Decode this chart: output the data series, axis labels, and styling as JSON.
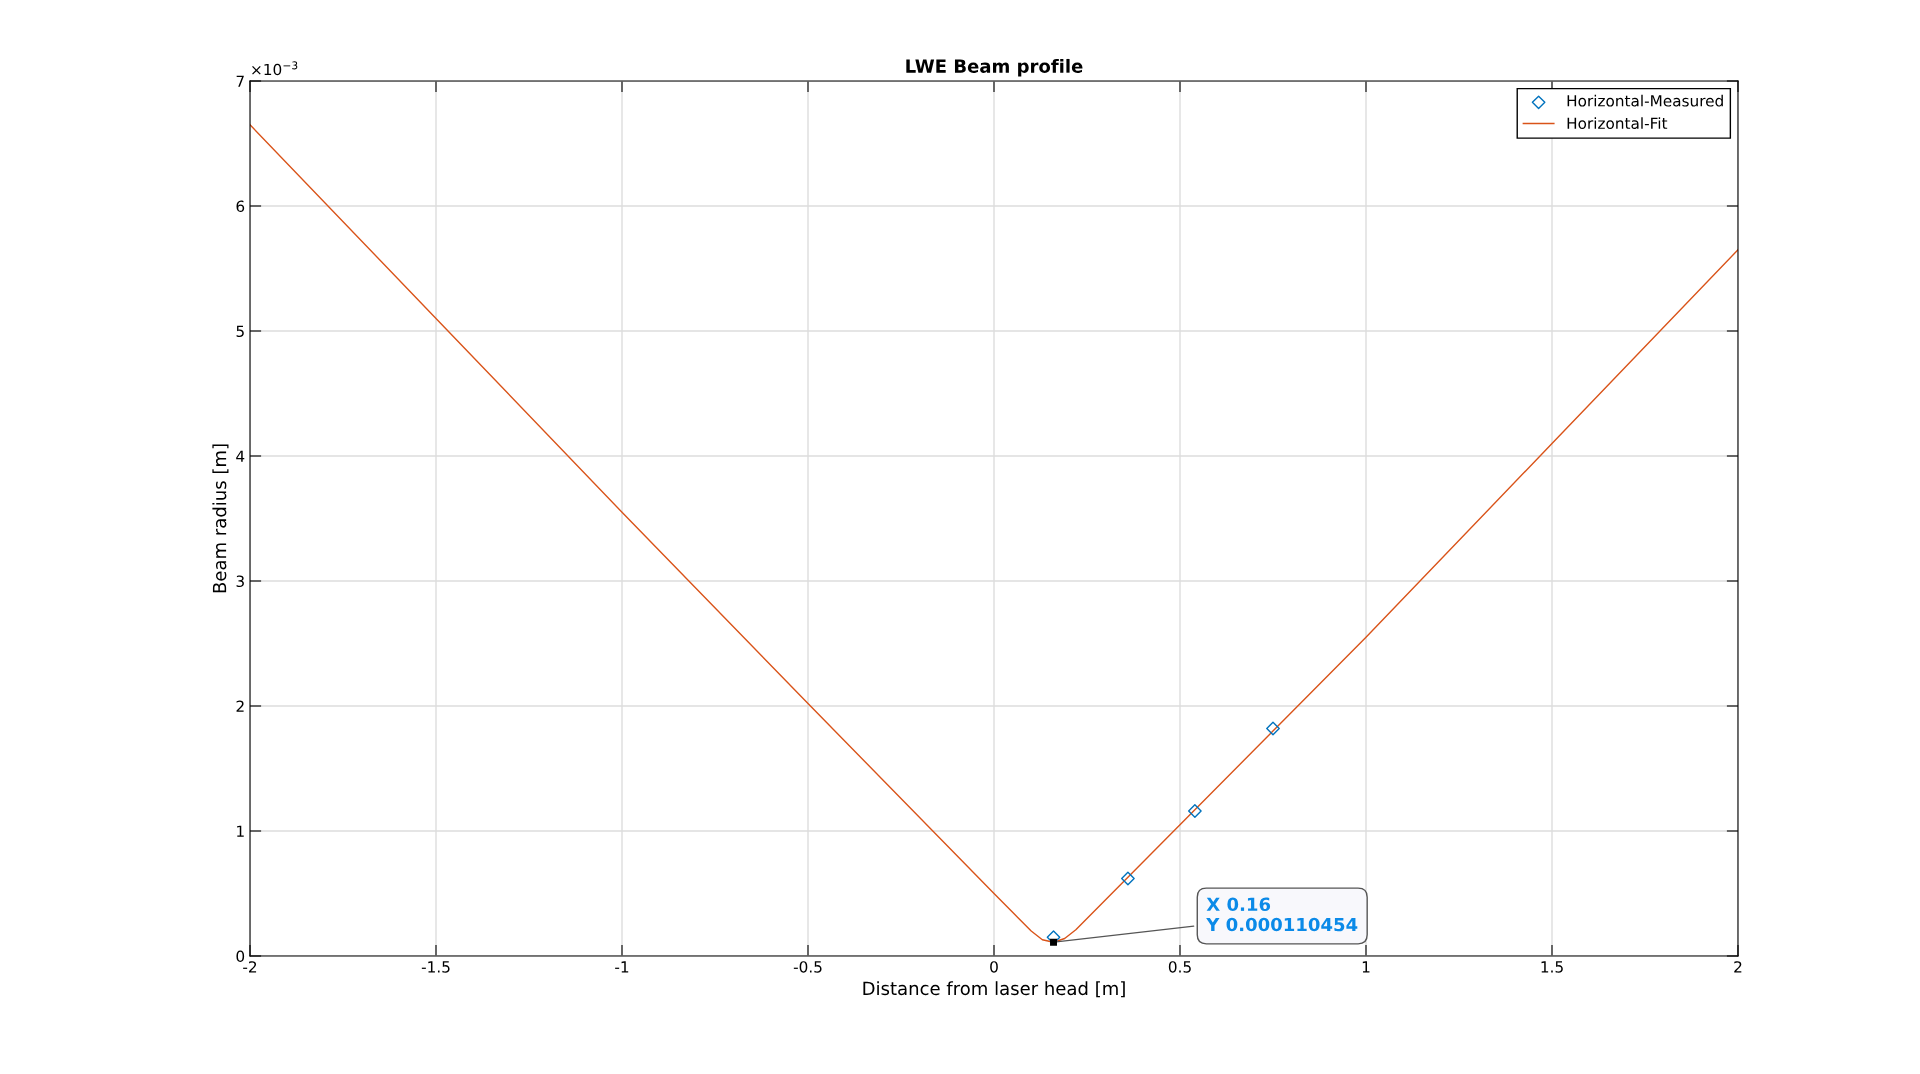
{
  "chart_data": {
    "type": "line",
    "title": "LWE Beam profile",
    "xlabel": "Distance from laser head [m]",
    "ylabel": "Beam radius [m]",
    "xlim": [
      -2,
      2
    ],
    "xticks": [
      -2,
      -1.5,
      -1,
      -0.5,
      0,
      0.5,
      1,
      1.5,
      2
    ],
    "ylim": [
      0,
      7
    ],
    "yticks": [
      0,
      1,
      2,
      3,
      4,
      5,
      6,
      7
    ],
    "grid": true,
    "legend": "top right",
    "series": [
      {
        "name": "Horizontal-Measured",
        "type": "scatter",
        "marker": "diamond",
        "color": "#0072bd",
        "x": [
          0.16,
          0.36,
          0.54,
          0.75
        ],
        "values": [
          0.15,
          0.62,
          1.16,
          1.82
        ]
      },
      {
        "name": "Horizontal-Fit",
        "color": "#d95319",
        "x": [
          -2,
          -1.5,
          -1,
          -0.5,
          0,
          0.05,
          0.1,
          0.13,
          0.16,
          0.19,
          0.22,
          0.3,
          0.5,
          1,
          1.5,
          2
        ],
        "values": [
          6.65,
          5.1,
          3.55,
          2.02,
          0.5,
          0.35,
          0.2,
          0.13,
          0.11,
          0.14,
          0.21,
          0.45,
          1.05,
          2.55,
          4.1,
          5.65
        ]
      }
    ],
    "annotations": [
      "×10$^{−3}$",
      {
        "text": "X 0.16\nY 0.000110454",
        "x": 0.16,
        "y": 0.110454
      }
    ]
  }
}
